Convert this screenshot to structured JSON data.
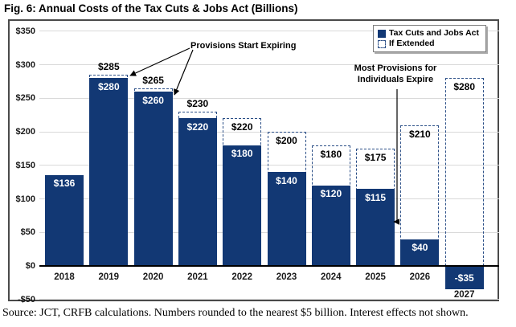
{
  "source_note": "Source: JCT, CRFB calculations. Numbers rounded to the nearest $5 billion. Interest effects not shown.",
  "chart_data": {
    "type": "bar",
    "title": "Fig. 6: Annual Costs of the Tax Cuts & Jobs Act (Billions)",
    "categories": [
      "2018",
      "2019",
      "2020",
      "2021",
      "2022",
      "2023",
      "2024",
      "2025",
      "2026",
      "2027"
    ],
    "series": [
      {
        "name": "Tax Cuts and Jobs Act",
        "style": "solid",
        "color": "#123874",
        "values": [
          136,
          280,
          260,
          220,
          180,
          140,
          120,
          115,
          40,
          -35
        ],
        "labels": [
          "$136",
          "$280",
          "$260",
          "$220",
          "$180",
          "$140",
          "$120",
          "$115",
          "$40",
          "-$35"
        ]
      },
      {
        "name": "If Extended",
        "style": "dashed-outline",
        "color": "#2B4F87",
        "values": [
          null,
          285,
          265,
          230,
          220,
          200,
          180,
          175,
          210,
          280
        ],
        "labels": [
          null,
          "$285",
          "$265",
          "$230",
          "$220",
          "$200",
          "$180",
          "$175",
          "$210",
          "$280"
        ]
      }
    ],
    "ylim": [
      -50,
      350
    ],
    "yticks": [
      {
        "value": 350,
        "label": "$350"
      },
      {
        "value": 300,
        "label": "$300"
      },
      {
        "value": 250,
        "label": "$250"
      },
      {
        "value": 200,
        "label": "$200"
      },
      {
        "value": 150,
        "label": "$150"
      },
      {
        "value": 100,
        "label": "$100"
      },
      {
        "value": 50,
        "label": "$50"
      },
      {
        "value": 0,
        "label": "$0"
      },
      {
        "value": -50,
        "label": "-$50"
      }
    ],
    "grid": true,
    "legend_position": "top-right",
    "annotations": [
      {
        "text": "Provisions Start Expiring",
        "targets": [
          "2019",
          "2020"
        ]
      },
      {
        "lines": [
          "Most Provisions for",
          "Individuals Expire"
        ],
        "target": "2025"
      }
    ]
  }
}
